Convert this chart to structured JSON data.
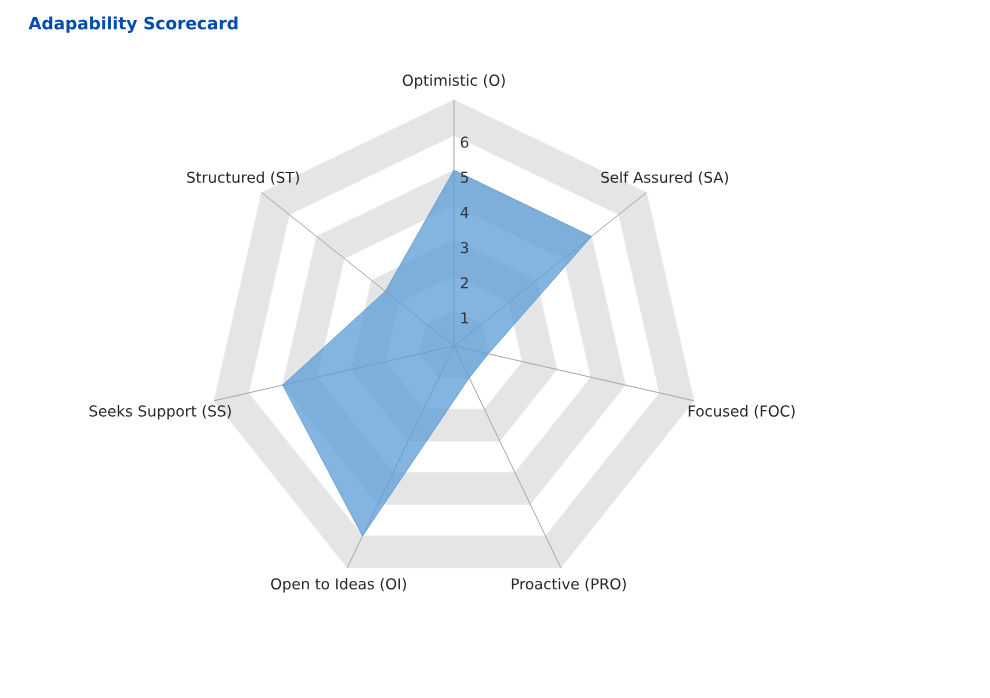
{
  "chart_data": {
    "type": "radar",
    "title": "Adapability Scorecard",
    "categories": [
      "Optimistic (O)",
      "Self Assured (SA)",
      "Focused (FOC)",
      "Proactive (PRO)",
      "Open to Ideas (OI)",
      "Seeks Support (SS)",
      "Structured (ST)"
    ],
    "series": [
      {
        "color": "#5b9bd5",
        "values": [
          5,
          5,
          1,
          1,
          6,
          5,
          2.5
        ]
      }
    ],
    "ylim": [
      0,
      7
    ],
    "yticks": [
      1,
      2,
      3,
      4,
      5,
      6
    ],
    "grid": true
  }
}
